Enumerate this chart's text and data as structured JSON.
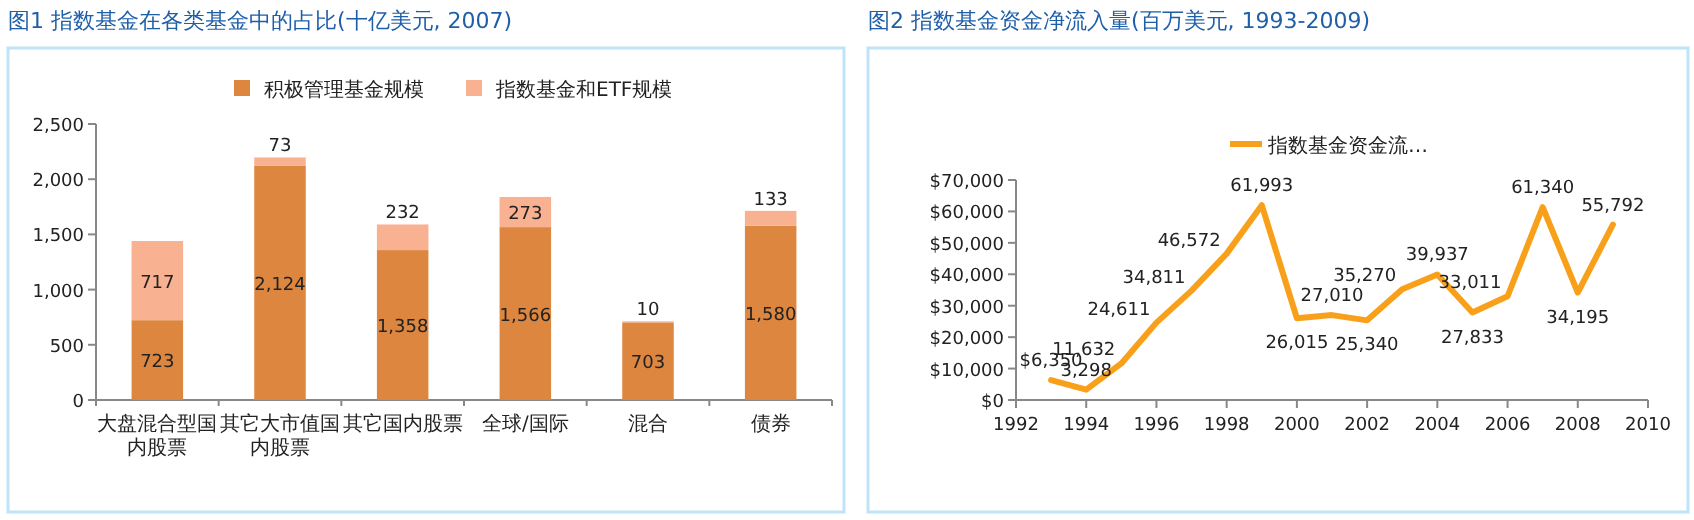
{
  "chart_data": [
    {
      "type": "bar",
      "title": "图1 指数基金在各类基金中的占比(十亿美元, 2007)",
      "stacked": true,
      "legend": "top",
      "categories": [
        "大盘混合型国内股票",
        "其它大市值国内股票",
        "其它国内股票",
        "全球/国际",
        "混合",
        "债券"
      ],
      "series": [
        {
          "name": "积极管理基金规模",
          "color": "#dd8640",
          "values": [
            723,
            2124,
            1358,
            1566,
            703,
            1580
          ],
          "value_labels": [
            "723",
            "2,124",
            "1,358",
            "1,566",
            "703",
            "1,580"
          ]
        },
        {
          "name": "指数基金和ETF规模",
          "color": "#f9b291",
          "values": [
            717,
            73,
            232,
            273,
            10,
            133
          ],
          "value_labels": [
            "717",
            "73",
            "232",
            "273",
            "10",
            "133"
          ]
        }
      ],
      "ylim": [
        0,
        2500
      ],
      "yticks": [
        0,
        500,
        {
          "value": 1000,
          "label": "1,000"
        },
        {
          "value": 1500,
          "label": "1,500"
        },
        {
          "value": 2000,
          "label": "2,000"
        },
        {
          "value": 2500,
          "label": "2,500"
        }
      ]
    },
    {
      "type": "line",
      "title": "图2 指数基金资金净流入量(百万美元, 1993-2009)",
      "legend": "top",
      "marker": "none",
      "line_style": "solid",
      "x": [
        1993,
        1994,
        1995,
        1996,
        1997,
        1998,
        1999,
        2000,
        2001,
        2002,
        2003,
        2004,
        2005,
        2006,
        2007,
        2008,
        2009
      ],
      "series": [
        {
          "name": "指数基金资金流…",
          "color": "#f9a01b",
          "values": [
            6350,
            3298,
            11632,
            24611,
            34811,
            46572,
            61993,
            26015,
            27010,
            25340,
            35270,
            39937,
            27833,
            33011,
            61340,
            34195,
            55792
          ],
          "value_labels": [
            "$6,350",
            "3,298",
            "11,632",
            "24,611",
            "34,811",
            "46,572",
            "61,993",
            "26,015",
            "27,010",
            "25,340",
            "35,270",
            "39,937",
            "27,833",
            "33,011",
            "61,340",
            "34,195",
            "55,792"
          ]
        }
      ],
      "xlim": [
        1992,
        2010
      ],
      "xticks": [
        1992,
        1994,
        1996,
        1998,
        2000,
        2002,
        2004,
        2006,
        2008,
        2010
      ],
      "ylim": [
        0,
        70000
      ],
      "yticks": [
        {
          "value": 0,
          "label": "$0"
        },
        {
          "value": 10000,
          "label": "$10,000"
        },
        {
          "value": 20000,
          "label": "$20,000"
        },
        {
          "value": 30000,
          "label": "$30,000"
        },
        {
          "value": 40000,
          "label": "$40,000"
        },
        {
          "value": 50000,
          "label": "$50,000"
        },
        {
          "value": 60000,
          "label": "$60,000"
        },
        {
          "value": 70000,
          "label": "$70,000"
        }
      ]
    }
  ]
}
